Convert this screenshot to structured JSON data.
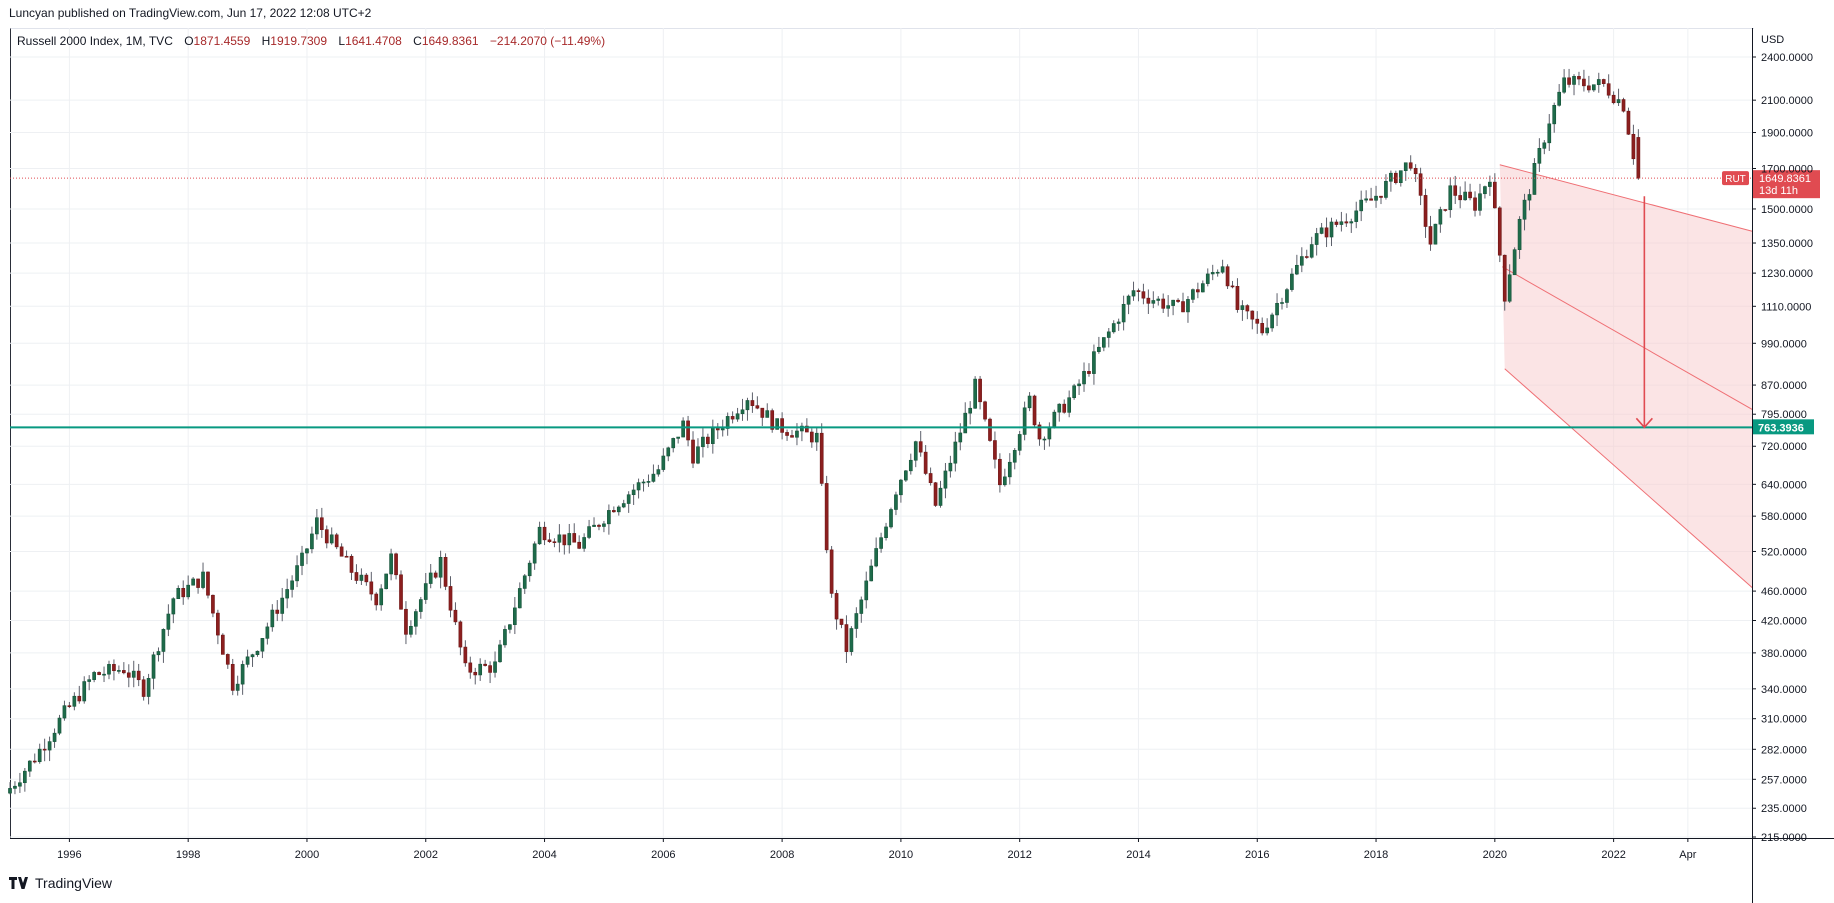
{
  "header": {
    "published": "Luncyan published on TradingView.com, Jun 17, 2022 12:08 UTC+2"
  },
  "legend": {
    "symbol": "Russell 2000 Index, 1M, TVC",
    "open_label": "O",
    "open": "1871.4559",
    "high_label": "H",
    "high": "1919.7309",
    "low_label": "L",
    "low": "1641.4708",
    "close_label": "C",
    "close": "1649.8361",
    "change": "−214.2070 (−11.49%)"
  },
  "footer": {
    "brand": "TradingView"
  },
  "colors": {
    "up": "#26a69a",
    "down": "#ef5350",
    "up_body": "#1e6b4a",
    "down_body": "#8c1f1f",
    "support_line": "#089981",
    "channel_fill": "#f7c9cb",
    "channel_line": "#ef6f74",
    "arrow": "#e04b51",
    "price_label_bg": "#e04b51",
    "grid": "#eef0f3"
  },
  "chart_data": {
    "type": "candlestick",
    "title": "Russell 2000 Index, 1M, TVC",
    "y_scale": "log",
    "currency": "USD",
    "y_ticks": [
      2400,
      2100,
      1900,
      1700,
      1500,
      1350,
      1230,
      1110,
      990,
      870,
      795,
      720,
      640,
      580,
      520,
      460,
      420,
      380,
      340,
      310,
      282,
      257,
      235,
      215
    ],
    "x_ticks": [
      "1996",
      "1998",
      "2000",
      "2002",
      "2004",
      "2006",
      "2008",
      "2010",
      "2012",
      "2014",
      "2016",
      "2018",
      "2020",
      "2022",
      "Apr"
    ],
    "x_range": [
      "1995-01",
      "2024-05"
    ],
    "series_anchor_points": [
      [
        "1995-01",
        250
      ],
      [
        "1995-06",
        275
      ],
      [
        "1995-12",
        315
      ],
      [
        "1996-06",
        355
      ],
      [
        "1996-12",
        362
      ],
      [
        "1997-04",
        340
      ],
      [
        "1997-10",
        450
      ],
      [
        "1998-04",
        480
      ],
      [
        "1998-10",
        345
      ],
      [
        "1999-03",
        390
      ],
      [
        "1999-12",
        505
      ],
      [
        "2000-03",
        570
      ],
      [
        "2000-10",
        490
      ],
      [
        "2001-03",
        450
      ],
      [
        "2001-06",
        510
      ],
      [
        "2001-09",
        410
      ],
      [
        "2002-04",
        505
      ],
      [
        "2002-09",
        360
      ],
      [
        "2003-03",
        365
      ],
      [
        "2003-12",
        556
      ],
      [
        "2004-08",
        530
      ],
      [
        "2005-03",
        600
      ],
      [
        "2005-12",
        670
      ],
      [
        "2006-05",
        770
      ],
      [
        "2006-07",
        700
      ],
      [
        "2007-06",
        840
      ],
      [
        "2007-12",
        765
      ],
      [
        "2008-08",
        740
      ],
      [
        "2008-11",
        450
      ],
      [
        "2009-02",
        385
      ],
      [
        "2009-12",
        630
      ],
      [
        "2010-04",
        730
      ],
      [
        "2010-08",
        600
      ],
      [
        "2011-04",
        865
      ],
      [
        "2011-09",
        640
      ],
      [
        "2012-03",
        830
      ],
      [
        "2012-05",
        740
      ],
      [
        "2012-12",
        850
      ],
      [
        "2013-12",
        1165
      ],
      [
        "2014-09",
        1100
      ],
      [
        "2015-06",
        1270
      ],
      [
        "2015-09",
        1100
      ],
      [
        "2016-02",
        1030
      ],
      [
        "2016-12",
        1360
      ],
      [
        "2017-12",
        1540
      ],
      [
        "2018-08",
        1740
      ],
      [
        "2018-12",
        1350
      ],
      [
        "2019-04",
        1590
      ],
      [
        "2019-09",
        1520
      ],
      [
        "2019-12",
        1670
      ],
      [
        "2020-03",
        1150
      ],
      [
        "2020-06",
        1440
      ],
      [
        "2020-12",
        1975
      ],
      [
        "2021-03",
        2220
      ],
      [
        "2021-11",
        2200
      ],
      [
        "2022-03",
        2070
      ],
      [
        "2022-06",
        1650
      ]
    ],
    "last_candle": {
      "date": "2022-06",
      "open": 1871.4559,
      "high": 1919.7309,
      "low": 1641.4708,
      "close": 1649.8361
    },
    "price_label": {
      "symbol": "RUT",
      "value": "1649.8361",
      "countdown": "13d 11h"
    },
    "support_level": {
      "value": 763.3936,
      "label": "763.3936"
    },
    "descending_channel": {
      "upper_line": [
        [
          "2020-02",
          1720
        ],
        [
          "2024-05",
          1400
        ]
      ],
      "lower_line": [
        [
          "2020-03",
          915
        ],
        [
          "2024-05",
          465
        ]
      ]
    },
    "projection_arrow": {
      "from": [
        "2022-06",
        1560
      ],
      "to": [
        "2022-06",
        763.3936
      ]
    }
  }
}
